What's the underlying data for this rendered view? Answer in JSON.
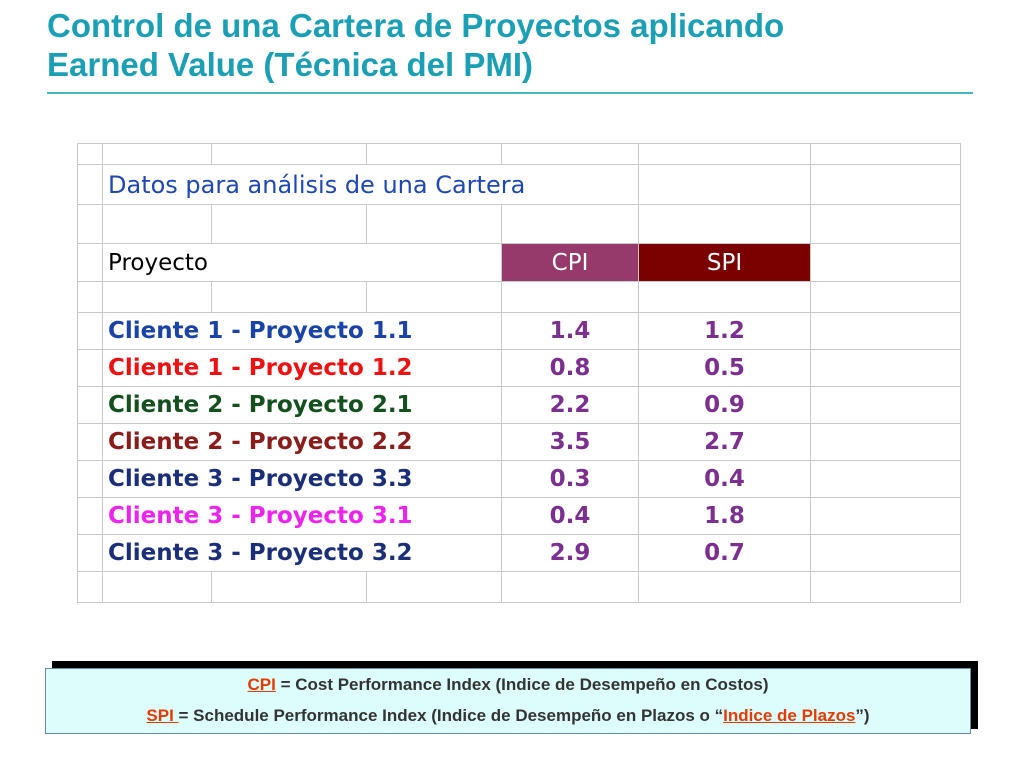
{
  "slide": {
    "title_line1": "Control de una Cartera de Proyectos aplicando",
    "title_line2": "Earned Value (Técnica del PMI)"
  },
  "sheet": {
    "caption": "Datos para análisis de una Cartera",
    "header_project": "Proyecto",
    "header_cpi": "CPI",
    "header_spi": "SPI",
    "colors": {
      "cpi_header_bg": "#963a6c",
      "spi_header_bg": "#7b0000",
      "value_text": "#7b2f8e"
    },
    "rows": [
      {
        "name": "Cliente 1 - Proyecto 1.1",
        "cpi": "1.4",
        "spi": "1.2",
        "color": "#1a43a8"
      },
      {
        "name": "Cliente 1 - Proyecto 1.2",
        "cpi": "0.8",
        "spi": "0.5",
        "color": "#ee1111"
      },
      {
        "name": "Cliente 2 - Proyecto 2.1",
        "cpi": "2.2",
        "spi": "0.9",
        "color": "#14501e"
      },
      {
        "name": "Cliente 2 - Proyecto 2.2",
        "cpi": "3.5",
        "spi": "2.7",
        "color": "#8a1c1c"
      },
      {
        "name": "Cliente 3 - Proyecto 3.3",
        "cpi": "0.3",
        "spi": "0.4",
        "color": "#1a2f78"
      },
      {
        "name": "Cliente 3 - Proyecto 3.1",
        "cpi": "0.4",
        "spi": "1.8",
        "color": "#ee22ee"
      },
      {
        "name": "Cliente 3 - Proyecto 3.2",
        "cpi": "2.9",
        "spi": "0.7",
        "color": "#1a2f78"
      }
    ]
  },
  "legend": {
    "cpi_abbr": "CPI",
    "cpi_text": " = Cost Performance Index (Indice de Desempeño en Costos)",
    "spi_abbr": "SPI ",
    "spi_text": "= Schedule Performance Index (Indice de Desempeño en Plazos o “",
    "spi_highlight": "Indice de Plazos",
    "spi_end": "”)",
    "colors": {
      "background": "#ddfdfd",
      "highlight": "#e63a00"
    }
  }
}
